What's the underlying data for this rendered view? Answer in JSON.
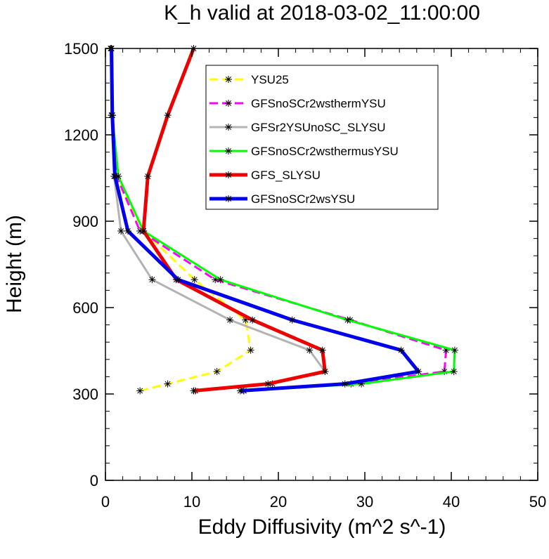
{
  "chart_data": {
    "type": "line",
    "title": "K_h valid at 2018-03-02_11:00:00",
    "xlabel": "Eddy Diffusivity (m^2 s^-1)",
    "ylabel": "Height (m)",
    "xlim": [
      0,
      50
    ],
    "ylim": [
      0,
      1500
    ],
    "x_ticks": [
      "0",
      "10",
      "20",
      "30",
      "40",
      "50"
    ],
    "y_ticks": [
      "0",
      "300",
      "600",
      "900",
      "1200",
      "1500"
    ],
    "grid": false,
    "legend_placement": "top-center",
    "marker": "asterisk",
    "series": [
      {
        "name": "YSU25",
        "color": "#ffff00",
        "dash": "dashed",
        "points": [
          [
            4.0,
            311
          ],
          [
            7.2,
            335
          ],
          [
            12.9,
            378
          ],
          [
            16.8,
            452
          ],
          [
            16.2,
            557
          ],
          [
            10.3,
            697
          ],
          [
            4.4,
            866
          ],
          [
            1.2,
            1056
          ],
          [
            0.7,
            1268
          ],
          [
            0.6,
            1500
          ]
        ]
      },
      {
        "name": "GFSnoSCr2wsthermYSU",
        "color": "#ff00ff",
        "dash": "dashed",
        "points": [
          [
            16.0,
            311
          ],
          [
            28.4,
            335
          ],
          [
            39.2,
            378
          ],
          [
            39.4,
            452
          ],
          [
            28.3,
            557
          ],
          [
            12.7,
            697
          ],
          [
            4.0,
            866
          ],
          [
            1.3,
            1056
          ],
          [
            0.8,
            1268
          ],
          [
            0.7,
            1500
          ]
        ]
      },
      {
        "name": "GFSr2YSUnoSC_SLYSU",
        "color": "#b3b3b3",
        "dash": "solid",
        "points": [
          [
            10.4,
            311
          ],
          [
            19.3,
            335
          ],
          [
            25.4,
            378
          ],
          [
            23.6,
            452
          ],
          [
            14.4,
            557
          ],
          [
            5.4,
            697
          ],
          [
            1.8,
            866
          ],
          [
            1.0,
            1056
          ],
          [
            0.7,
            1268
          ],
          [
            0.6,
            1500
          ]
        ]
      },
      {
        "name": "GFSnoSCr2wsthermusYSU",
        "color": "#00ff00",
        "dash": "solid",
        "points": [
          [
            16.0,
            311
          ],
          [
            29.6,
            335
          ],
          [
            40.3,
            378
          ],
          [
            40.4,
            452
          ],
          [
            28.0,
            557
          ],
          [
            13.3,
            697
          ],
          [
            4.4,
            866
          ],
          [
            1.5,
            1056
          ],
          [
            0.8,
            1268
          ],
          [
            0.7,
            1500
          ]
        ]
      },
      {
        "name": "GFS_SLYSU",
        "color": "#ee0000",
        "dash": "solid",
        "points": [
          [
            10.2,
            311
          ],
          [
            18.8,
            335
          ],
          [
            25.4,
            378
          ],
          [
            25.1,
            452
          ],
          [
            17.0,
            557
          ],
          [
            8.2,
            697
          ],
          [
            4.4,
            866
          ],
          [
            4.9,
            1056
          ],
          [
            7.2,
            1268
          ],
          [
            10.2,
            1500
          ]
        ]
      },
      {
        "name": "GFSnoSCr2wsYSU",
        "color": "#0000ee",
        "dash": "solid",
        "points": [
          [
            15.6,
            311
          ],
          [
            27.7,
            335
          ],
          [
            36.2,
            378
          ],
          [
            34.2,
            452
          ],
          [
            21.6,
            557
          ],
          [
            8.4,
            697
          ],
          [
            2.6,
            866
          ],
          [
            1.1,
            1056
          ],
          [
            0.8,
            1268
          ],
          [
            0.7,
            1500
          ]
        ]
      }
    ]
  }
}
